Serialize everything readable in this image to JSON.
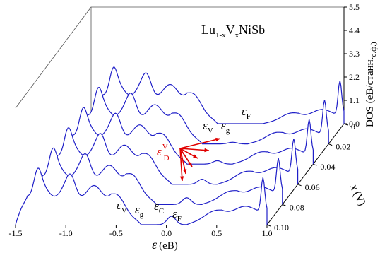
{
  "chart_data": {
    "type": "line",
    "title_formula": {
      "base": "Lu",
      "sub1": "1-x",
      "mid": "V",
      "sub2": "x",
      "tail": "NiSb"
    },
    "xlabel": {
      "symbol": "ε",
      "unit": "(eB)"
    },
    "zlabel": "DOS (eB/станн.",
    "zlabel_sub": "е.ф.)",
    "ylabel": {
      "symbol": "x",
      "unit": "(V)"
    },
    "x_ticks": [
      "-1.5",
      "-1.0",
      "-0.5",
      "0.0",
      "0.5",
      "1.0"
    ],
    "x_range": [
      -1.5,
      1.0
    ],
    "z_ticks": [
      "0.0",
      "1.1",
      "2.2",
      "3.3",
      "4.4",
      "5.5"
    ],
    "z_range": [
      0,
      5.5
    ],
    "y_ticks": [
      "0",
      "0.02",
      "0.04",
      "0.06",
      "0.08",
      "0.10"
    ],
    "series": [
      {
        "x_content": 0.1
      },
      {
        "x_content": 0.08
      },
      {
        "x_content": 0.06
      },
      {
        "x_content": 0.04
      },
      {
        "x_content": 0.02
      },
      {
        "x_content": 0.0
      }
    ],
    "annotations": {
      "back": {
        "ev": "ε",
        "ev_sub": "V",
        "eg": "ε",
        "eg_sub": "g",
        "ef": "ε",
        "ef_sub": "F"
      },
      "front": {
        "ev": "ε",
        "ev_sub": "V",
        "eg": "ε",
        "eg_sub": "g",
        "ec": "ε",
        "ec_sub": "C",
        "ef": "ε",
        "ef_sub": "F"
      },
      "red": {
        "sym": "ε",
        "sup": "V",
        "sub": "D"
      }
    },
    "colors": {
      "curve": "#1f1fc8",
      "arrow": "#e00000",
      "axis": "#000000"
    }
  }
}
